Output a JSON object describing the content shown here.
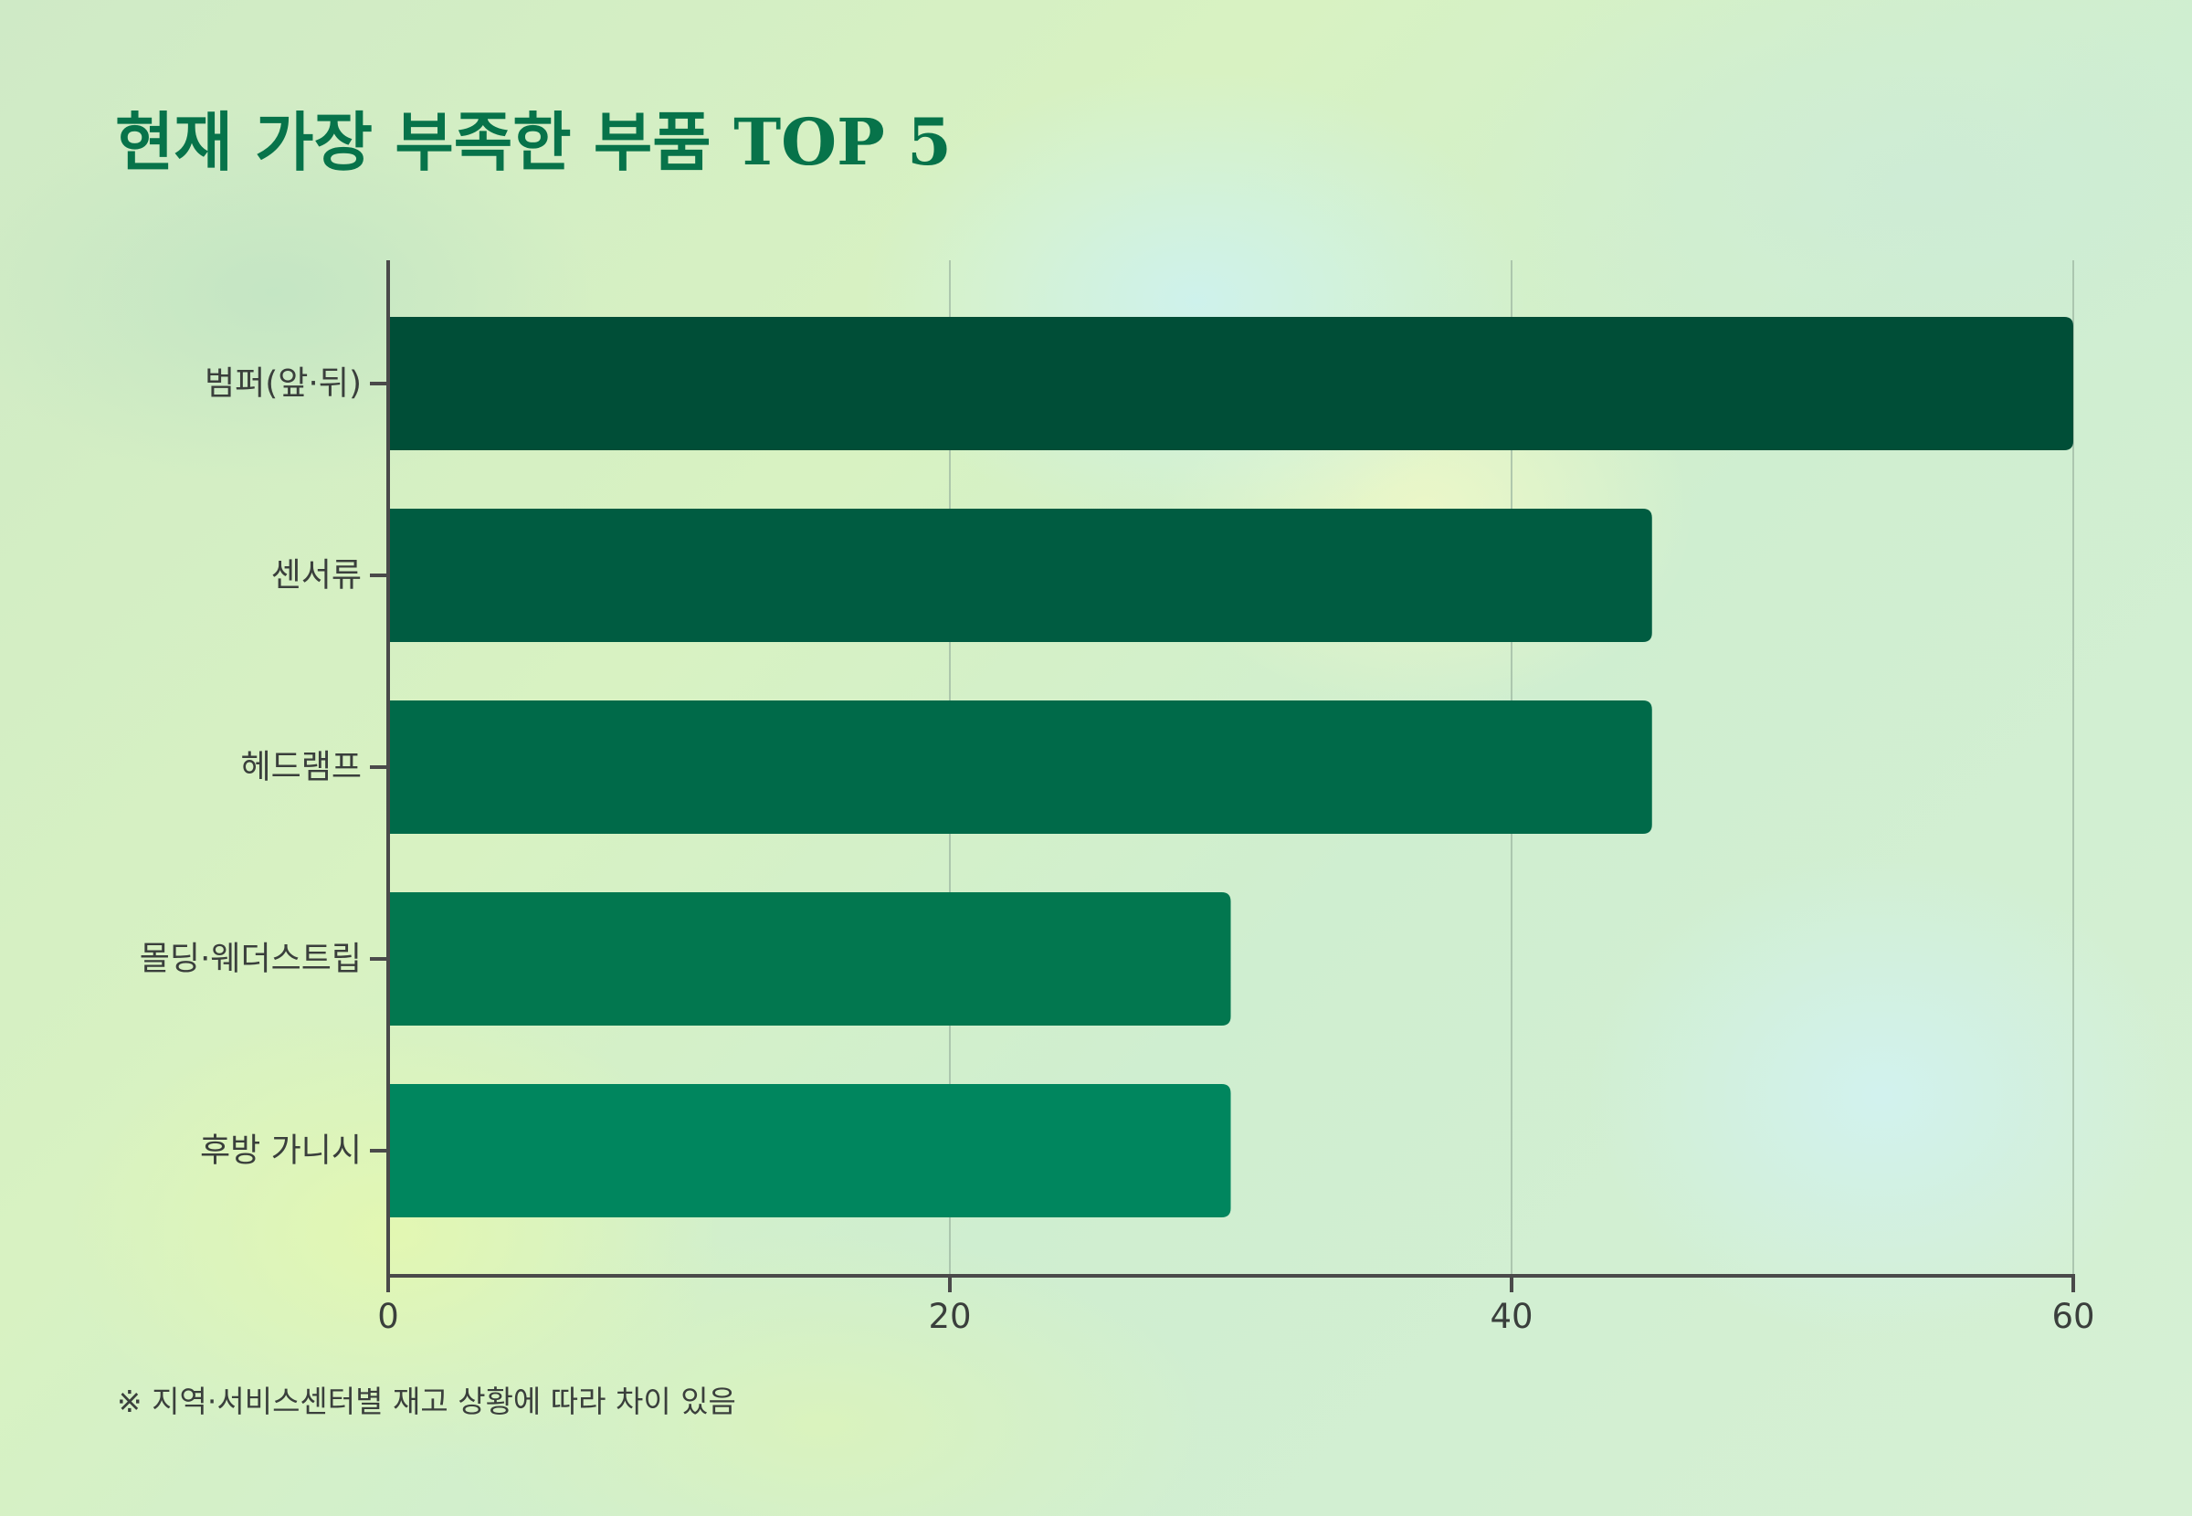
{
  "title": "현재 가장 부족한 부품 TOP 5",
  "footnote": "※ 지역·서비스센터별 재고 상황에 따라 차이 있음",
  "chart_data": {
    "type": "bar",
    "orientation": "horizontal",
    "title": "현재 가장 부족한 부품 TOP 5",
    "categories": [
      "범퍼(앞·뒤)",
      "센서류",
      "헤드램프",
      "몰딩·웨더스트립",
      "후방 가니시"
    ],
    "values": [
      60,
      45,
      45,
      30,
      30
    ],
    "colors": [
      "#004e37",
      "#005c41",
      "#006a49",
      "#02774f",
      "#00865e"
    ],
    "xlim": [
      0,
      60
    ],
    "xticks": [
      0,
      20,
      40,
      60
    ],
    "grid": true
  }
}
